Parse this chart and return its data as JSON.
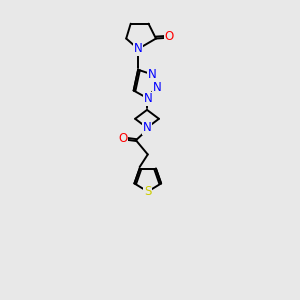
{
  "bg_color": "#e8e8e8",
  "atom_colors": {
    "N": "#0000ff",
    "O": "#ff0000",
    "S": "#cccc00",
    "C": "#000000"
  },
  "bond_color": "#000000",
  "fig_width": 3.0,
  "fig_height": 3.0,
  "dpi": 100,
  "lw": 1.4,
  "fontsize": 8.5
}
